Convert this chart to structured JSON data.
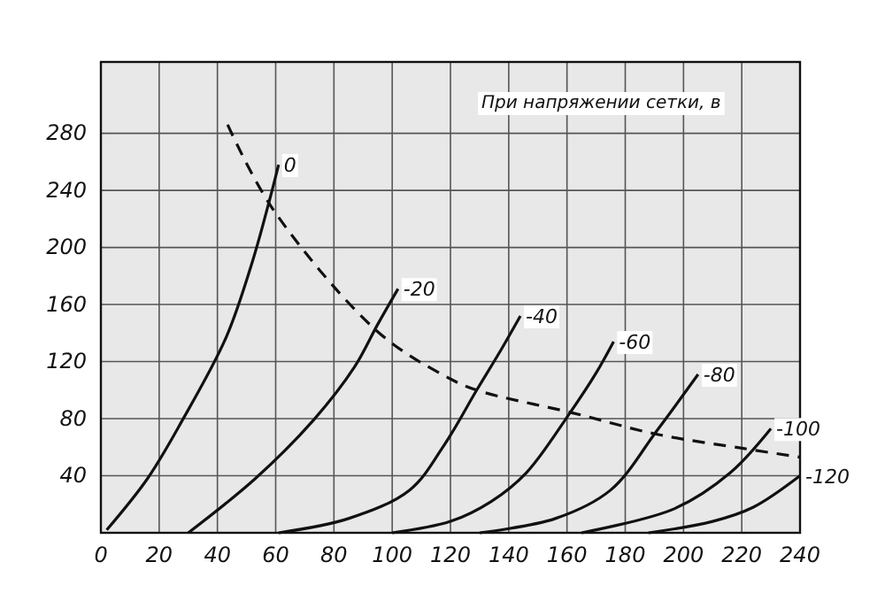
{
  "chart_data": {
    "type": "line",
    "annotations": [
      "При напряжении сетки, в"
    ],
    "xlim": [
      0,
      240
    ],
    "xticks": [
      0,
      20,
      40,
      60,
      80,
      100,
      120,
      140,
      160,
      180,
      200,
      220,
      240
    ],
    "ylim": [
      0,
      330
    ],
    "yticks": [
      40,
      80,
      120,
      160,
      200,
      240,
      280
    ],
    "grid": true,
    "legend": false,
    "marker": "none",
    "series": [
      {
        "name": "0",
        "color": "#111111",
        "x": [
          2,
          16,
          28,
          43,
          52,
          58,
          61
        ],
        "values": [
          2,
          38,
          79,
          137,
          190,
          234,
          258
        ]
      },
      {
        "name": "-20",
        "color": "#111111",
        "x": [
          30,
          53,
          73,
          87,
          95,
          102
        ],
        "values": [
          0,
          38,
          79,
          116,
          146,
          171
        ]
      },
      {
        "name": "-40",
        "color": "#111111",
        "x": [
          61,
          85,
          106,
          118,
          129,
          137,
          144
        ],
        "values": [
          0,
          10,
          30,
          62,
          100,
          127,
          152
        ]
      },
      {
        "name": "-60",
        "color": "#111111",
        "x": [
          100,
          120,
          134,
          146,
          161,
          170,
          176
        ],
        "values": [
          0,
          8,
          22,
          42,
          84,
          112,
          134
        ]
      },
      {
        "name": "-80",
        "color": "#111111",
        "x": [
          130,
          156,
          175,
          191,
          205
        ],
        "values": [
          0,
          10,
          30,
          72,
          111
        ]
      },
      {
        "name": "-100",
        "color": "#111111",
        "x": [
          165,
          197,
          216,
          230
        ],
        "values": [
          0,
          17,
          42,
          73
        ]
      },
      {
        "name": "-120",
        "color": "#111111",
        "x": [
          188,
          210,
          224,
          240
        ],
        "values": [
          0,
          8,
          18,
          40
        ]
      },
      {
        "color": "#111111",
        "line_style": "dashed",
        "x": [
          43.5,
          59,
          95,
          118,
          129,
          162,
          191,
          221,
          240
        ],
        "values": [
          286,
          227,
          141,
          110,
          100,
          84,
          69,
          59,
          53
        ]
      }
    ]
  }
}
